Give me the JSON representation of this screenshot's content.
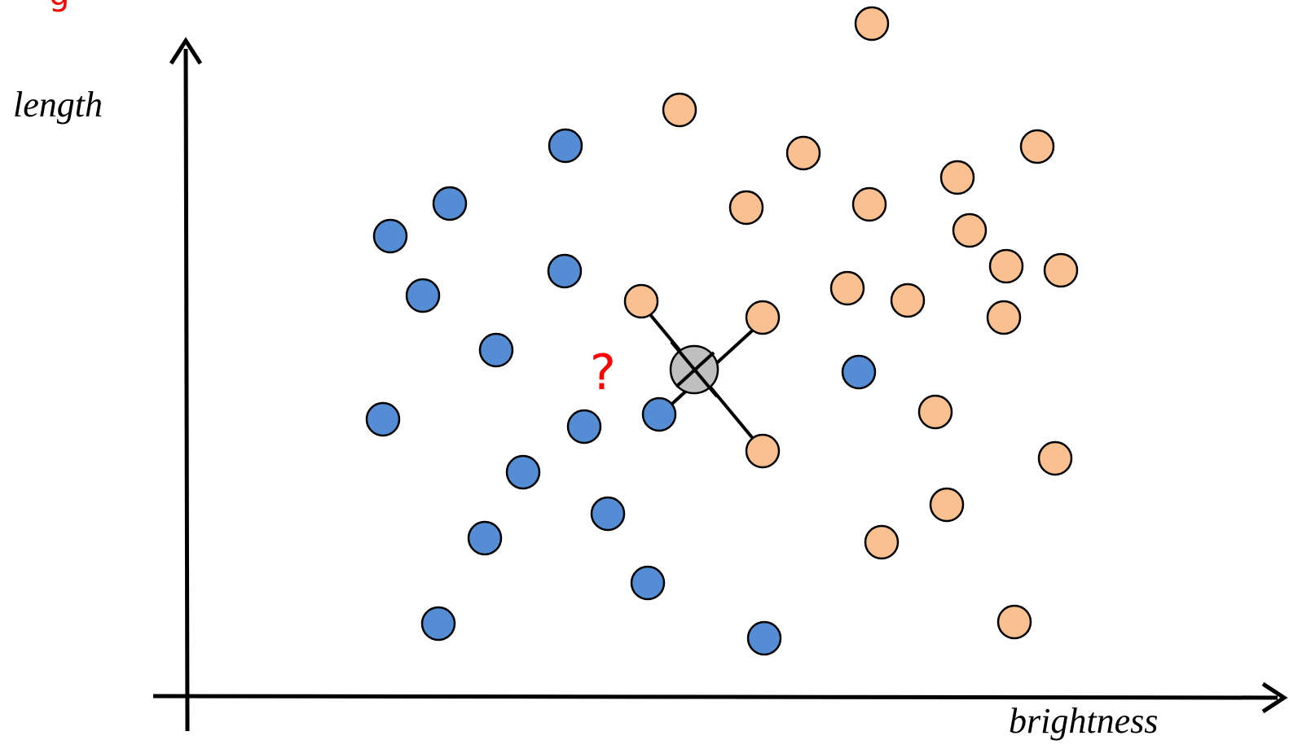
{
  "figure": {
    "x_axis_label": "brightness",
    "y_axis_label": "length",
    "query_label": "?",
    "cropped_top_text": "g",
    "colors": {
      "class_a": "#548dd4",
      "class_b": "#fac090",
      "query": "#bfbfbf",
      "question_mark": "#ff0000",
      "stroke": "#000000"
    },
    "class_a_name": "blue",
    "class_b_name": "orange",
    "k_neighbors": 4
  }
}
